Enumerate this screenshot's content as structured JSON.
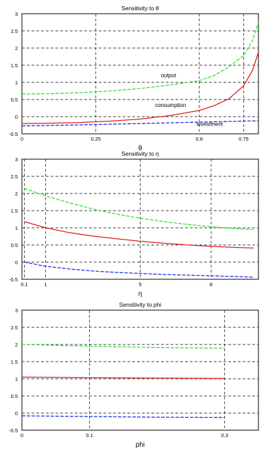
{
  "chart_data": [
    {
      "type": "line",
      "title": "Sensitivity to θ",
      "xlabel": "θ",
      "ylabel": "",
      "xlim": [
        0,
        0.8
      ],
      "ylim": [
        -0.5,
        3
      ],
      "xticks": [
        0,
        0.25,
        0.6,
        0.75
      ],
      "xtick_labels": [
        "0",
        "0.25",
        "0.6",
        "0.75"
      ],
      "yticks": [
        -0.5,
        0,
        0.5,
        1,
        1.5,
        2,
        2.5,
        3
      ],
      "ytick_labels": [
        "-0.5",
        "0",
        "0.5",
        "1",
        "1.5",
        "2",
        "2.5",
        "3"
      ],
      "grid": true,
      "series": [
        {
          "name": "output",
          "color": "#33e033",
          "dash": "dashed",
          "x": [
            0,
            0.1,
            0.2,
            0.3,
            0.4,
            0.5,
            0.6,
            0.65,
            0.7,
            0.75,
            0.78,
            0.8
          ],
          "y": [
            0.66,
            0.67,
            0.7,
            0.75,
            0.82,
            0.92,
            1.05,
            1.2,
            1.45,
            1.78,
            2.22,
            2.75
          ]
        },
        {
          "name": "consumption",
          "color": "#e01b1b",
          "dash": "solid",
          "x": [
            0,
            0.1,
            0.2,
            0.3,
            0.4,
            0.5,
            0.6,
            0.65,
            0.7,
            0.75,
            0.78,
            0.8
          ],
          "y": [
            -0.2,
            -0.19,
            -0.17,
            -0.13,
            -0.07,
            0.03,
            0.18,
            0.32,
            0.52,
            0.9,
            1.35,
            1.88
          ]
        },
        {
          "name": "investment",
          "color": "#2030e0",
          "dash": "dashed",
          "x": [
            0,
            0.2,
            0.4,
            0.6,
            0.8
          ],
          "y": [
            -0.27,
            -0.24,
            -0.2,
            -0.16,
            -0.12
          ]
        }
      ],
      "annotations": [
        {
          "text": "output",
          "x": 0.47,
          "y": 1.15
        },
        {
          "text": "consumption",
          "x": 0.45,
          "y": 0.28
        },
        {
          "text": "investment",
          "x": 0.59,
          "y": -0.27
        }
      ]
    },
    {
      "type": "line",
      "title": "Sensitivity to η",
      "xlabel": "η",
      "ylabel": "",
      "xlim": [
        0,
        10
      ],
      "ylim": [
        -0.5,
        3
      ],
      "xticks": [
        0.1,
        1,
        5,
        8
      ],
      "xtick_labels": [
        "0.1",
        "1",
        "5",
        "8"
      ],
      "yticks": [
        -0.5,
        0,
        0.5,
        1,
        1.5,
        2,
        2.5,
        3
      ],
      "ytick_labels": [
        "-0.5",
        "0",
        "0.5",
        "1",
        "1.5",
        "2",
        "2.5",
        "3"
      ],
      "grid": true,
      "series": [
        {
          "name": "output",
          "color": "#33e033",
          "dash": "dashed",
          "x": [
            0.1,
            1,
            2,
            3,
            4,
            5,
            6,
            7,
            8,
            9,
            9.8
          ],
          "y": [
            2.15,
            1.93,
            1.73,
            1.55,
            1.4,
            1.28,
            1.18,
            1.1,
            1.03,
            0.98,
            0.95
          ]
        },
        {
          "name": "consumption",
          "color": "#e01b1b",
          "dash": "solid",
          "x": [
            0.1,
            1,
            2,
            3,
            4,
            5,
            6,
            7,
            8,
            9,
            9.8
          ],
          "y": [
            1.18,
            1.0,
            0.86,
            0.76,
            0.68,
            0.61,
            0.55,
            0.5,
            0.46,
            0.43,
            0.41
          ]
        },
        {
          "name": "investment",
          "color": "#2030e0",
          "dash": "dashed",
          "x": [
            0.1,
            1,
            2,
            3,
            4,
            5,
            6,
            7,
            8,
            9,
            9.8
          ],
          "y": [
            0.0,
            -0.12,
            -0.2,
            -0.26,
            -0.3,
            -0.33,
            -0.36,
            -0.38,
            -0.4,
            -0.42,
            -0.44
          ]
        }
      ]
    },
    {
      "type": "line",
      "title": "Sensitivity to phi",
      "xlabel": "phi",
      "ylabel": "",
      "xlim": [
        0,
        0.35
      ],
      "ylim": [
        -0.5,
        3
      ],
      "xticks": [
        0,
        0.1,
        0.3
      ],
      "xtick_labels": [
        "0",
        "0.1",
        "0.3"
      ],
      "yticks": [
        -0.5,
        0,
        0.5,
        1,
        1.5,
        2,
        2.5,
        3
      ],
      "ytick_labels": [
        "-0.5",
        "0",
        "0.5",
        "1",
        "1.5",
        "2",
        "2.5",
        "3"
      ],
      "grid": true,
      "series": [
        {
          "name": "output",
          "color": "#33e033",
          "dash": "dashed",
          "x": [
            0,
            0.1,
            0.2,
            0.3
          ],
          "y": [
            2.0,
            1.95,
            1.91,
            1.89
          ]
        },
        {
          "name": "consumption",
          "color": "#e01b1b",
          "dash": "solid",
          "x": [
            0,
            0.1,
            0.2,
            0.3
          ],
          "y": [
            1.05,
            1.03,
            1.02,
            1.01
          ]
        },
        {
          "name": "investment",
          "color": "#2030e0",
          "dash": "dashed",
          "x": [
            0,
            0.1,
            0.2,
            0.3
          ],
          "y": [
            -0.08,
            -0.1,
            -0.12,
            -0.13
          ]
        }
      ]
    }
  ]
}
